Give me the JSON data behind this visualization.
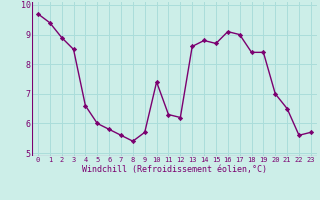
{
  "x": [
    0,
    1,
    2,
    3,
    4,
    5,
    6,
    7,
    8,
    9,
    10,
    11,
    12,
    13,
    14,
    15,
    16,
    17,
    18,
    19,
    20,
    21,
    22,
    23
  ],
  "y": [
    9.7,
    9.4,
    8.9,
    8.5,
    6.6,
    6.0,
    5.8,
    5.6,
    5.4,
    5.7,
    7.4,
    6.3,
    6.2,
    8.6,
    8.8,
    8.7,
    9.1,
    9.0,
    8.4,
    8.4,
    7.0,
    6.5,
    5.6,
    5.7
  ],
  "line_color": "#7b0070",
  "marker_color": "#7b0070",
  "bg_color": "#cceee8",
  "grid_color": "#aaddda",
  "xlabel": "Windchill (Refroidissement éolien,°C)",
  "xlabel_color": "#7b0070",
  "tick_color": "#7b0070",
  "ylim": [
    4.9,
    10.1
  ],
  "xlim": [
    -0.5,
    23.5
  ],
  "yticks": [
    5,
    6,
    7,
    8,
    9,
    10
  ],
  "xticks": [
    0,
    1,
    2,
    3,
    4,
    5,
    6,
    7,
    8,
    9,
    10,
    11,
    12,
    13,
    14,
    15,
    16,
    17,
    18,
    19,
    20,
    21,
    22,
    23
  ],
  "xlabel_fontsize": 6.0,
  "xtick_fontsize": 5.0,
  "ytick_fontsize": 6.0,
  "linewidth": 1.0,
  "markersize": 2.2
}
